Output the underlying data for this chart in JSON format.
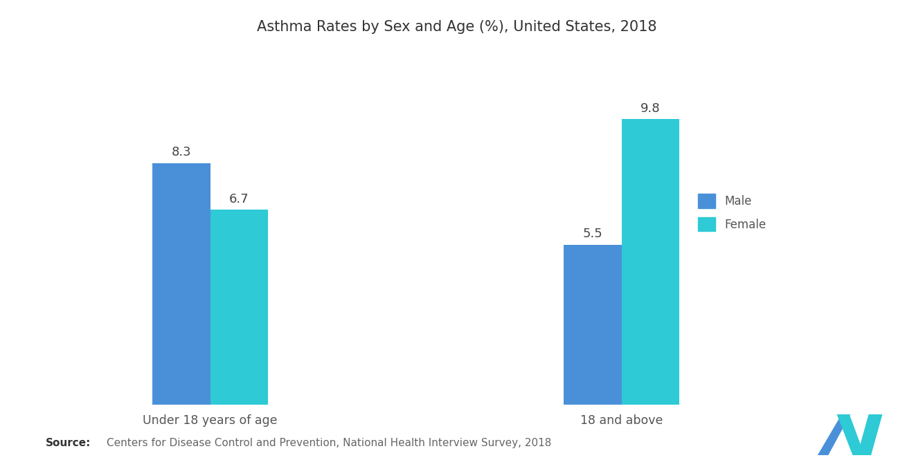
{
  "title": "Asthma Rates by Sex and Age (%), United States, 2018",
  "categories": [
    "Under 18 years of age",
    "18 and above"
  ],
  "male_values": [
    8.3,
    5.5
  ],
  "female_values": [
    6.7,
    9.8
  ],
  "male_color": "#4A90D9",
  "female_color": "#2ECAD5",
  "bar_width": 0.28,
  "group_positions": [
    1.0,
    3.0
  ],
  "xlim": [
    0.2,
    4.2
  ],
  "ylim": [
    0,
    12
  ],
  "legend_labels": [
    "Male",
    "Female"
  ],
  "source_bold": "Source:",
  "source_text": "Centers for Disease Control and Prevention, National Health Interview Survey, 2018",
  "background_color": "#ffffff",
  "plot_bg_color": "#ffffff",
  "title_fontsize": 15,
  "label_fontsize": 12.5,
  "annotation_fontsize": 13,
  "tick_fontsize": 12,
  "logo_color1": "#4A90D9",
  "logo_color2": "#2ECAD5"
}
